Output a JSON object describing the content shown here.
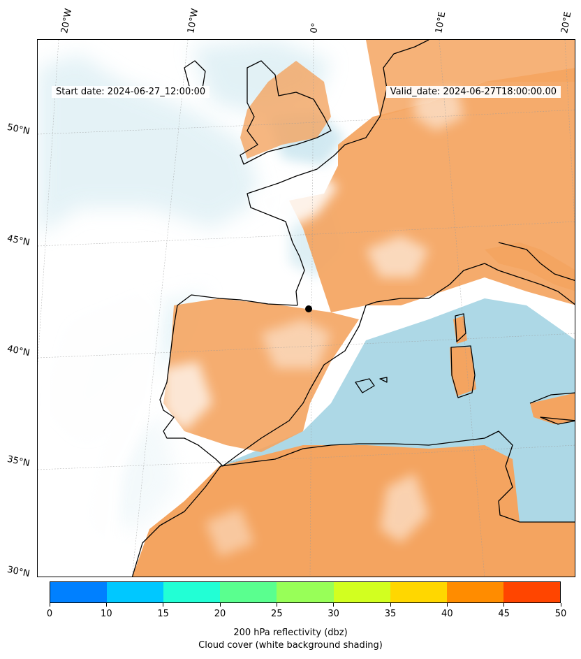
{
  "map": {
    "start_date": "Start date: 2024-06-27_12:00:00",
    "valid_date": "Valid_date: 2024-06-27T18:00:00.00",
    "lon_labels": [
      "20°W",
      "10°W",
      "0°",
      "10°E",
      "20°E"
    ],
    "lat_labels": [
      "50°N",
      "45°N",
      "40°N",
      "35°N",
      "30°N"
    ],
    "colors": {
      "land_high_cloud": "#f4a460",
      "sea_high_cloud": "#add8e6",
      "clear": "#ffffff",
      "coastline": "#000000"
    }
  },
  "colorbar": {
    "ticks": [
      "0",
      "10",
      "15",
      "20",
      "25",
      "30",
      "35",
      "40",
      "45",
      "50"
    ],
    "colors": [
      "#0080ff",
      "#00c8ff",
      "#22ffd5",
      "#5aff8f",
      "#98ff58",
      "#d2ff20",
      "#ffd700",
      "#ff8c00",
      "#ff4500"
    ],
    "label_line1": "200 hPa reflectivity (dbz)",
    "label_line2": "Cloud cover (white background shading)"
  }
}
